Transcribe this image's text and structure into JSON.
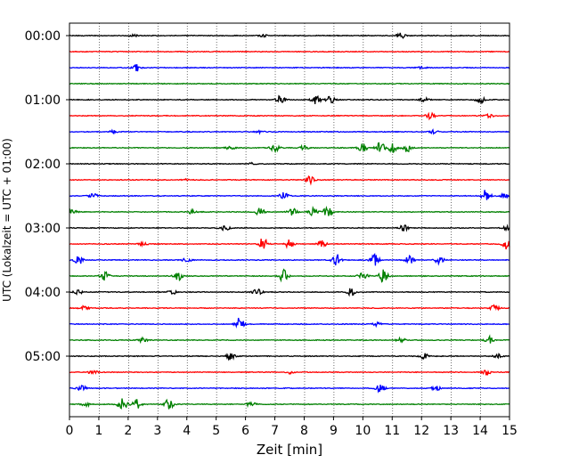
{
  "chart_data": {
    "type": "line",
    "subtype": "helicorder (seismogram traces)",
    "xlabel": "Zeit  [min]",
    "ylabel": "UTC (Lokalzeit = UTC + 01:00)",
    "xlim": [
      0,
      15
    ],
    "x_ticks": [
      "0",
      "1",
      "2",
      "3",
      "4",
      "5",
      "6",
      "7",
      "8",
      "9",
      "10",
      "11",
      "12",
      "13",
      "14",
      "15"
    ],
    "y_ticks": [
      "00:00",
      "01:00",
      "02:00",
      "03:00",
      "04:00",
      "05:00"
    ],
    "grid": "vertical dotted lines at each minute",
    "trace_colors": [
      "#000000",
      "#ff0000",
      "#0000ff",
      "#008000"
    ],
    "rows": [
      {
        "start": "00:00",
        "color": "#000000",
        "bursts": [
          {
            "x": 11.3,
            "amp": 0.25
          },
          {
            "x": 6.6,
            "amp": 0.12
          },
          {
            "x": 2.2,
            "amp": 0.1
          }
        ]
      },
      {
        "start": "00:15",
        "color": "#ff0000",
        "bursts": []
      },
      {
        "start": "00:30",
        "color": "#0000ff",
        "bursts": [
          {
            "x": 2.3,
            "amp": 0.35
          },
          {
            "x": 12.0,
            "amp": 0.1
          }
        ]
      },
      {
        "start": "00:45",
        "color": "#008000",
        "bursts": []
      },
      {
        "start": "01:00",
        "color": "#000000",
        "bursts": [
          {
            "x": 7.2,
            "amp": 0.4
          },
          {
            "x": 8.4,
            "amp": 0.45
          },
          {
            "x": 8.9,
            "amp": 0.35
          },
          {
            "x": 12.1,
            "amp": 0.2
          },
          {
            "x": 14.0,
            "amp": 0.35
          }
        ]
      },
      {
        "start": "01:15",
        "color": "#ff0000",
        "bursts": [
          {
            "x": 12.3,
            "amp": 0.3
          },
          {
            "x": 14.3,
            "amp": 0.15
          }
        ]
      },
      {
        "start": "01:30",
        "color": "#0000ff",
        "bursts": [
          {
            "x": 1.5,
            "amp": 0.12
          },
          {
            "x": 6.5,
            "amp": 0.1
          },
          {
            "x": 12.4,
            "amp": 0.15
          }
        ]
      },
      {
        "start": "01:45",
        "color": "#008000",
        "bursts": [
          {
            "x": 7.0,
            "amp": 0.4
          },
          {
            "x": 10.0,
            "amp": 0.45
          },
          {
            "x": 10.6,
            "amp": 0.55
          },
          {
            "x": 11.0,
            "amp": 0.6
          },
          {
            "x": 11.5,
            "amp": 0.4
          },
          {
            "x": 8.0,
            "amp": 0.2
          },
          {
            "x": 5.5,
            "amp": 0.2
          }
        ]
      },
      {
        "start": "02:00",
        "color": "#000000",
        "bursts": [
          {
            "x": 6.2,
            "amp": 0.1
          }
        ]
      },
      {
        "start": "02:15",
        "color": "#ff0000",
        "bursts": [
          {
            "x": 8.2,
            "amp": 0.4
          },
          {
            "x": 4.0,
            "amp": 0.08
          }
        ]
      },
      {
        "start": "02:30",
        "color": "#0000ff",
        "bursts": [
          {
            "x": 0.8,
            "amp": 0.25
          },
          {
            "x": 7.3,
            "amp": 0.35
          },
          {
            "x": 14.2,
            "amp": 0.6
          },
          {
            "x": 14.8,
            "amp": 0.2
          }
        ]
      },
      {
        "start": "02:45",
        "color": "#008000",
        "bursts": [
          {
            "x": 6.5,
            "amp": 0.4
          },
          {
            "x": 7.6,
            "amp": 0.35
          },
          {
            "x": 8.3,
            "amp": 0.35
          },
          {
            "x": 8.8,
            "amp": 0.6
          },
          {
            "x": 4.2,
            "amp": 0.2
          },
          {
            "x": 0.1,
            "amp": 0.2
          }
        ]
      },
      {
        "start": "03:00",
        "color": "#000000",
        "bursts": [
          {
            "x": 5.3,
            "amp": 0.25
          },
          {
            "x": 11.4,
            "amp": 0.3
          },
          {
            "x": 14.9,
            "amp": 0.2
          }
        ]
      },
      {
        "start": "03:15",
        "color": "#ff0000",
        "bursts": [
          {
            "x": 6.6,
            "amp": 0.6
          },
          {
            "x": 7.5,
            "amp": 0.45
          },
          {
            "x": 8.6,
            "amp": 0.35
          },
          {
            "x": 14.9,
            "amp": 0.55
          },
          {
            "x": 2.5,
            "amp": 0.15
          }
        ]
      },
      {
        "start": "03:30",
        "color": "#0000ff",
        "bursts": [
          {
            "x": 0.3,
            "amp": 0.45
          },
          {
            "x": 9.1,
            "amp": 0.6
          },
          {
            "x": 10.4,
            "amp": 0.6
          },
          {
            "x": 11.6,
            "amp": 0.4
          },
          {
            "x": 12.6,
            "amp": 0.35
          },
          {
            "x": 4.0,
            "amp": 0.2
          }
        ]
      },
      {
        "start": "03:45",
        "color": "#008000",
        "bursts": [
          {
            "x": 1.2,
            "amp": 0.4
          },
          {
            "x": 3.7,
            "amp": 0.4
          },
          {
            "x": 7.3,
            "amp": 0.6
          },
          {
            "x": 10.0,
            "amp": 0.45
          },
          {
            "x": 10.7,
            "amp": 0.6
          }
        ]
      },
      {
        "start": "04:00",
        "color": "#000000",
        "bursts": [
          {
            "x": 0.3,
            "amp": 0.25
          },
          {
            "x": 3.5,
            "amp": 0.2
          },
          {
            "x": 6.4,
            "amp": 0.3
          },
          {
            "x": 9.6,
            "amp": 0.35
          }
        ]
      },
      {
        "start": "04:15",
        "color": "#ff0000",
        "bursts": [
          {
            "x": 0.5,
            "amp": 0.2
          },
          {
            "x": 14.5,
            "amp": 0.3
          }
        ]
      },
      {
        "start": "04:30",
        "color": "#0000ff",
        "bursts": [
          {
            "x": 5.8,
            "amp": 0.6
          },
          {
            "x": 10.5,
            "amp": 0.2
          }
        ]
      },
      {
        "start": "04:45",
        "color": "#008000",
        "bursts": [
          {
            "x": 2.5,
            "amp": 0.2
          },
          {
            "x": 11.3,
            "amp": 0.2
          },
          {
            "x": 14.3,
            "amp": 0.35
          }
        ]
      },
      {
        "start": "05:00",
        "color": "#000000",
        "bursts": [
          {
            "x": 5.5,
            "amp": 0.35
          },
          {
            "x": 12.1,
            "amp": 0.3
          },
          {
            "x": 14.6,
            "amp": 0.2
          }
        ]
      },
      {
        "start": "05:15",
        "color": "#ff0000",
        "bursts": [
          {
            "x": 0.8,
            "amp": 0.2
          },
          {
            "x": 14.2,
            "amp": 0.3
          },
          {
            "x": 7.5,
            "amp": 0.15
          }
        ]
      },
      {
        "start": "05:30",
        "color": "#0000ff",
        "bursts": [
          {
            "x": 0.4,
            "amp": 0.3
          },
          {
            "x": 10.6,
            "amp": 0.35
          },
          {
            "x": 12.5,
            "amp": 0.2
          }
        ]
      },
      {
        "start": "05:45",
        "color": "#008000",
        "bursts": [
          {
            "x": 0.5,
            "amp": 0.45
          },
          {
            "x": 1.8,
            "amp": 0.6
          },
          {
            "x": 2.3,
            "amp": 0.45
          },
          {
            "x": 3.4,
            "amp": 0.55
          },
          {
            "x": 6.2,
            "amp": 0.25
          }
        ]
      }
    ]
  }
}
